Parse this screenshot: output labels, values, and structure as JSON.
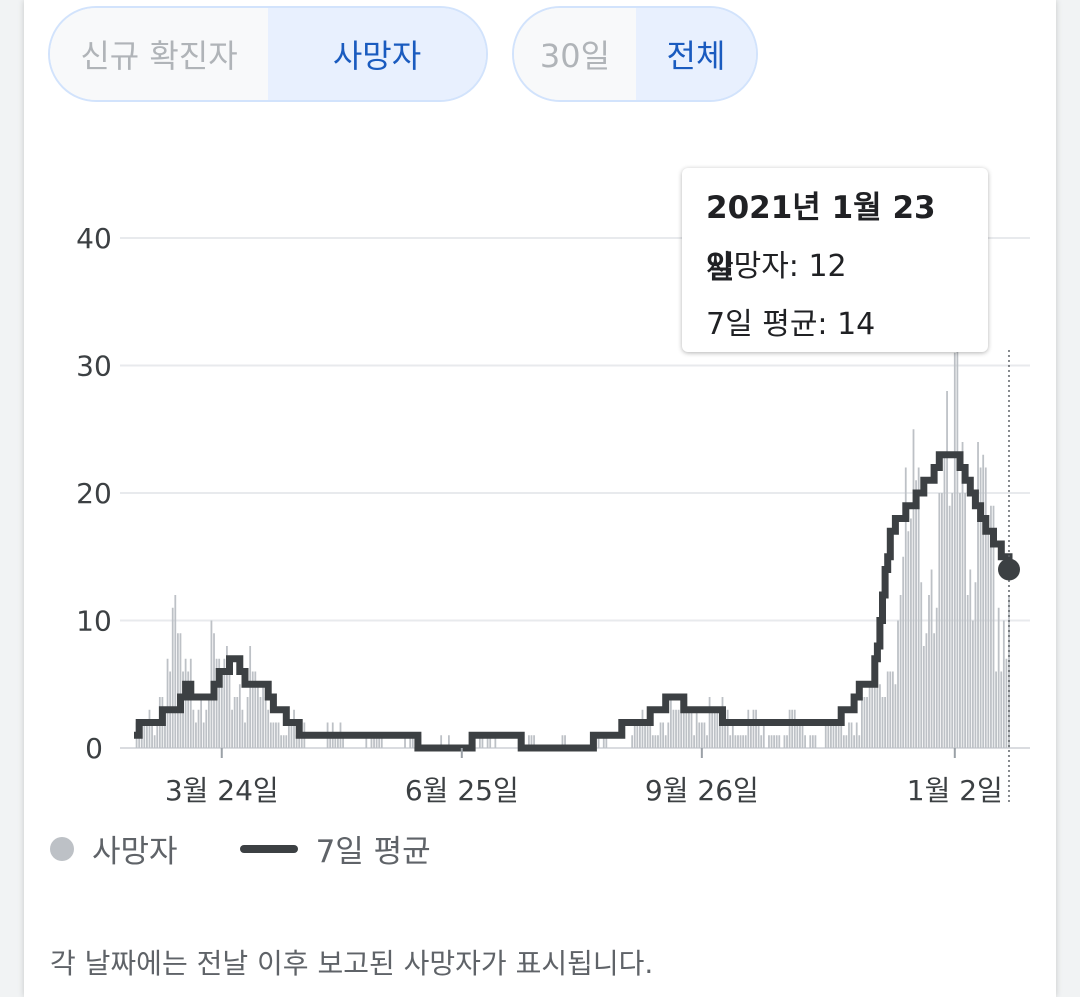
{
  "toggles": {
    "metric": {
      "options": [
        "신규 확진자",
        "사망자"
      ],
      "selected": "사망자"
    },
    "range": {
      "options": [
        "30일",
        "전체"
      ],
      "selected": "전체"
    }
  },
  "tooltip": {
    "date": "2021년 1월 23일",
    "deaths_label": "사망자: 12",
    "avg_label": "7일 평균: 14"
  },
  "legend": {
    "bars": "사망자",
    "line": "7일 평균"
  },
  "footnote": "각 날짜에는 전날 이후 보고된 사망자가 표시됩니다.",
  "colors": {
    "bars": "#bdc1c6",
    "line": "#3c4043",
    "accent": "#1a5bbf"
  },
  "chart_data": {
    "type": "bar",
    "x_range": [
      "2020-02-19",
      "2021-01-23"
    ],
    "ylim": [
      0,
      45
    ],
    "yticks": [
      0,
      10,
      20,
      30,
      40
    ],
    "xticks": [
      {
        "date": "2020-03-24",
        "label": "3월 24일"
      },
      {
        "date": "2020-06-25",
        "label": "6월 25일"
      },
      {
        "date": "2020-09-26",
        "label": "9월 26일"
      },
      {
        "date": "2021-01-02",
        "label": "1월 2일"
      }
    ],
    "grid": true,
    "series": [
      {
        "name": "사망자",
        "type": "bar",
        "keypoints": [
          [
            "2020-02-19",
            1
          ],
          [
            "2020-02-27",
            3
          ],
          [
            "2020-03-05",
            11
          ],
          [
            "2020-03-10",
            6
          ],
          [
            "2020-03-20",
            8
          ],
          [
            "2020-03-27",
            6
          ],
          [
            "2020-04-03",
            7
          ],
          [
            "2020-04-12",
            4
          ],
          [
            "2020-04-22",
            2
          ],
          [
            "2020-05-15",
            1
          ],
          [
            "2020-06-20",
            0
          ],
          [
            "2020-07-15",
            1
          ],
          [
            "2020-08-10",
            0
          ],
          [
            "2020-08-25",
            1
          ],
          [
            "2020-09-10",
            3
          ],
          [
            "2020-09-20",
            4
          ],
          [
            "2020-10-05",
            3
          ],
          [
            "2020-10-20",
            2
          ],
          [
            "2020-11-15",
            2
          ],
          [
            "2020-11-28",
            4
          ],
          [
            "2020-12-05",
            6
          ],
          [
            "2020-12-10",
            12
          ],
          [
            "2020-12-15",
            20
          ],
          [
            "2020-12-20",
            22
          ],
          [
            "2020-12-25",
            19
          ],
          [
            "2021-01-01",
            24
          ],
          [
            "2021-01-05",
            33
          ],
          [
            "2021-01-10",
            22
          ],
          [
            "2021-01-15",
            18
          ],
          [
            "2021-01-20",
            14
          ],
          [
            "2021-01-23",
            12
          ]
        ]
      },
      {
        "name": "7일 평균",
        "type": "line",
        "keypoints": [
          [
            "2020-02-19",
            1
          ],
          [
            "2020-02-22",
            2
          ],
          [
            "2020-02-29",
            2
          ],
          [
            "2020-03-02",
            3
          ],
          [
            "2020-03-07",
            3
          ],
          [
            "2020-03-10",
            5
          ],
          [
            "2020-03-13",
            4
          ],
          [
            "2020-03-20",
            4
          ],
          [
            "2020-03-24",
            6
          ],
          [
            "2020-03-29",
            7
          ],
          [
            "2020-04-02",
            5
          ],
          [
            "2020-04-09",
            5
          ],
          [
            "2020-04-14",
            3
          ],
          [
            "2020-04-20",
            2
          ],
          [
            "2020-04-24",
            1
          ],
          [
            "2020-06-05",
            1
          ],
          [
            "2020-06-10",
            0
          ],
          [
            "2020-06-18",
            0
          ],
          [
            "2020-07-10",
            1
          ],
          [
            "2020-07-25",
            0
          ],
          [
            "2020-08-10",
            0
          ],
          [
            "2020-08-20",
            1
          ],
          [
            "2020-09-01",
            2
          ],
          [
            "2020-09-10",
            3
          ],
          [
            "2020-09-14",
            4
          ],
          [
            "2020-09-22",
            3
          ],
          [
            "2020-10-01",
            3
          ],
          [
            "2020-10-05",
            2
          ],
          [
            "2020-10-15",
            2
          ],
          [
            "2020-11-08",
            2
          ],
          [
            "2020-11-15",
            2
          ],
          [
            "2020-11-22",
            3
          ],
          [
            "2020-11-27",
            5
          ],
          [
            "2020-12-01",
            5
          ],
          [
            "2020-12-04",
            10
          ],
          [
            "2020-12-08",
            17
          ],
          [
            "2020-12-12",
            18
          ],
          [
            "2020-12-16",
            19
          ],
          [
            "2020-12-19",
            20
          ],
          [
            "2020-12-23",
            21
          ],
          [
            "2020-12-28",
            23
          ],
          [
            "2021-01-03",
            23
          ],
          [
            "2021-01-08",
            20
          ],
          [
            "2021-01-12",
            18
          ],
          [
            "2021-01-18",
            16
          ],
          [
            "2021-01-21",
            15
          ],
          [
            "2021-01-23",
            14
          ]
        ]
      }
    ],
    "highlight": {
      "date": "2021-01-23",
      "deaths": 12,
      "avg": 14
    }
  }
}
